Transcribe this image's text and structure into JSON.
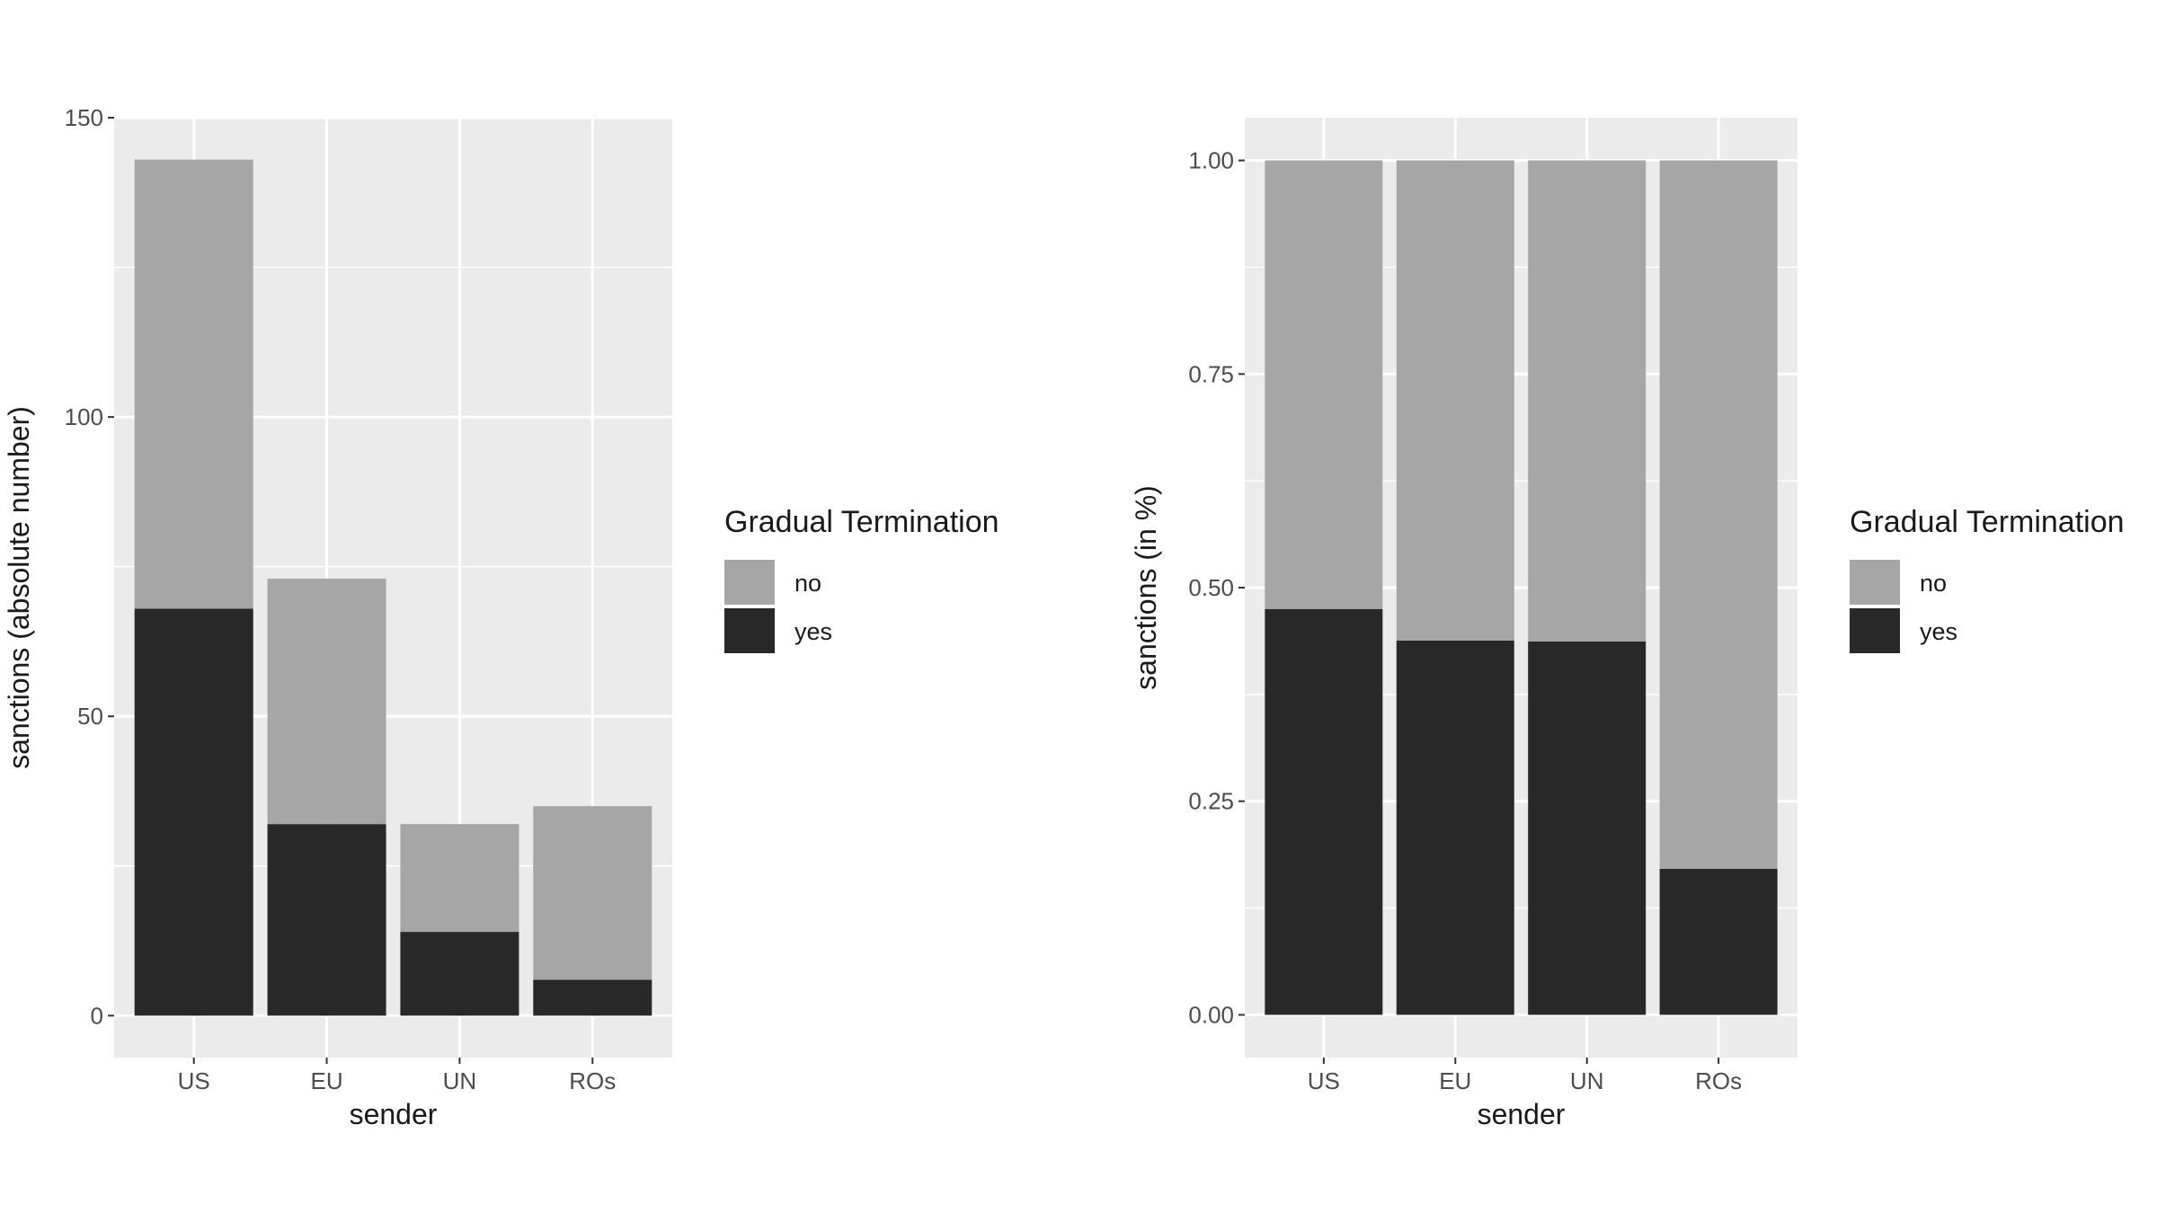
{
  "chart_data": [
    {
      "type": "bar",
      "stacked": true,
      "categories": [
        "US",
        "EU",
        "UN",
        "ROs"
      ],
      "series": [
        {
          "name": "yes",
          "values": [
            68,
            32,
            14,
            6
          ],
          "color": "#282828"
        },
        {
          "name": "no",
          "values": [
            75,
            41,
            18,
            29
          ],
          "color": "#a6a6a6"
        }
      ],
      "xlabel": "sender",
      "ylabel": "sanctions (absolute number)",
      "yticks": [
        0,
        50,
        100,
        150
      ],
      "ytick_labels": [
        "0",
        "50",
        "100",
        "150"
      ],
      "ylim": [
        -7,
        150
      ],
      "grid": true,
      "panel_background": "#ebebeb",
      "legend": {
        "title": "Gradual Termination",
        "position": "right",
        "items": [
          {
            "label": "no",
            "color": "#a6a6a6"
          },
          {
            "label": "yes",
            "color": "#282828"
          }
        ]
      }
    },
    {
      "type": "bar",
      "stacked": true,
      "categories": [
        "US",
        "EU",
        "UN",
        "ROs"
      ],
      "series": [
        {
          "name": "yes",
          "values": [
            0.475,
            0.438,
            0.437,
            0.171
          ],
          "color": "#282828"
        },
        {
          "name": "no",
          "values": [
            0.525,
            0.562,
            0.563,
            0.829
          ],
          "color": "#a6a6a6"
        }
      ],
      "xlabel": "sender",
      "ylabel": "sanctions (in %)",
      "yticks": [
        0,
        0.25,
        0.5,
        0.75,
        1
      ],
      "ytick_labels": [
        "0.00",
        "0.25",
        "0.50",
        "0.75",
        "1.00"
      ],
      "ylim": [
        -0.05,
        1.05
      ],
      "grid": true,
      "panel_background": "#ebebeb",
      "legend": {
        "title": "Gradual Termination",
        "position": "right",
        "items": [
          {
            "label": "no",
            "color": "#a6a6a6"
          },
          {
            "label": "yes",
            "color": "#282828"
          }
        ]
      }
    }
  ]
}
